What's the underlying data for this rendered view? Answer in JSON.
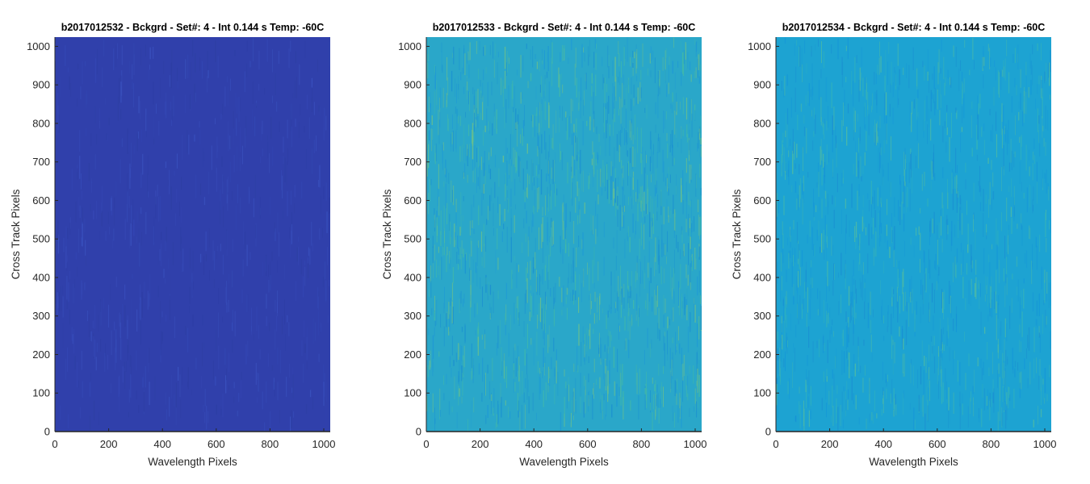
{
  "chart_data": [
    {
      "type": "heatmap",
      "title": "b2017012532 - Bckgrd - Set#: 4 - Int 0.144 s Temp: -60C",
      "xlabel": "Wavelength Pixels",
      "ylabel": "Cross Track Pixels",
      "xlim": [
        0,
        1024
      ],
      "ylim": [
        0,
        1024
      ],
      "xticks": [
        0,
        200,
        400,
        600,
        800,
        1000
      ],
      "yticks": [
        0,
        100,
        200,
        300,
        400,
        500,
        600,
        700,
        800,
        900,
        1000
      ],
      "colormap": "parula",
      "base_color": "#3040ab",
      "texture": {
        "main_color": "#3040ab",
        "alt_colors": [
          "#2d3ea3",
          "#3448b5",
          "#3a52c0"
        ],
        "stripe_density": 0.25
      }
    },
    {
      "type": "heatmap",
      "title": "b2017012533 - Bckgrd - Set#: 4 - Int 0.144 s Temp: -60C",
      "xlabel": "Wavelength Pixels",
      "ylabel": "Cross Track Pixels",
      "xlim": [
        0,
        1024
      ],
      "ylim": [
        0,
        1024
      ],
      "xticks": [
        0,
        200,
        400,
        600,
        800,
        1000
      ],
      "yticks": [
        0,
        100,
        200,
        300,
        400,
        500,
        600,
        700,
        800,
        900,
        1000
      ],
      "colormap": "parula",
      "base_color": "#2aa7c9",
      "texture": {
        "main_color": "#2aa7c9",
        "alt_colors": [
          "#1e98d6",
          "#43b9a7",
          "#6cc08a",
          "#1a8fd1"
        ],
        "stripe_density": 0.55
      }
    },
    {
      "type": "heatmap",
      "title": "b2017012534 - Bckgrd - Set#: 4 - Int 0.144 s Temp: -60C",
      "xlabel": "Wavelength Pixels",
      "ylabel": "Cross Track Pixels",
      "xlim": [
        0,
        1024
      ],
      "ylim": [
        0,
        1024
      ],
      "xticks": [
        0,
        200,
        400,
        600,
        800,
        1000
      ],
      "yticks": [
        0,
        100,
        200,
        300,
        400,
        500,
        600,
        700,
        800,
        900,
        1000
      ],
      "colormap": "parula",
      "base_color": "#1da3d2",
      "texture": {
        "main_color": "#1da3d2",
        "alt_colors": [
          "#1596d8",
          "#35b3b8",
          "#52bca0",
          "#1a8fd1"
        ],
        "stripe_density": 0.45
      }
    }
  ]
}
